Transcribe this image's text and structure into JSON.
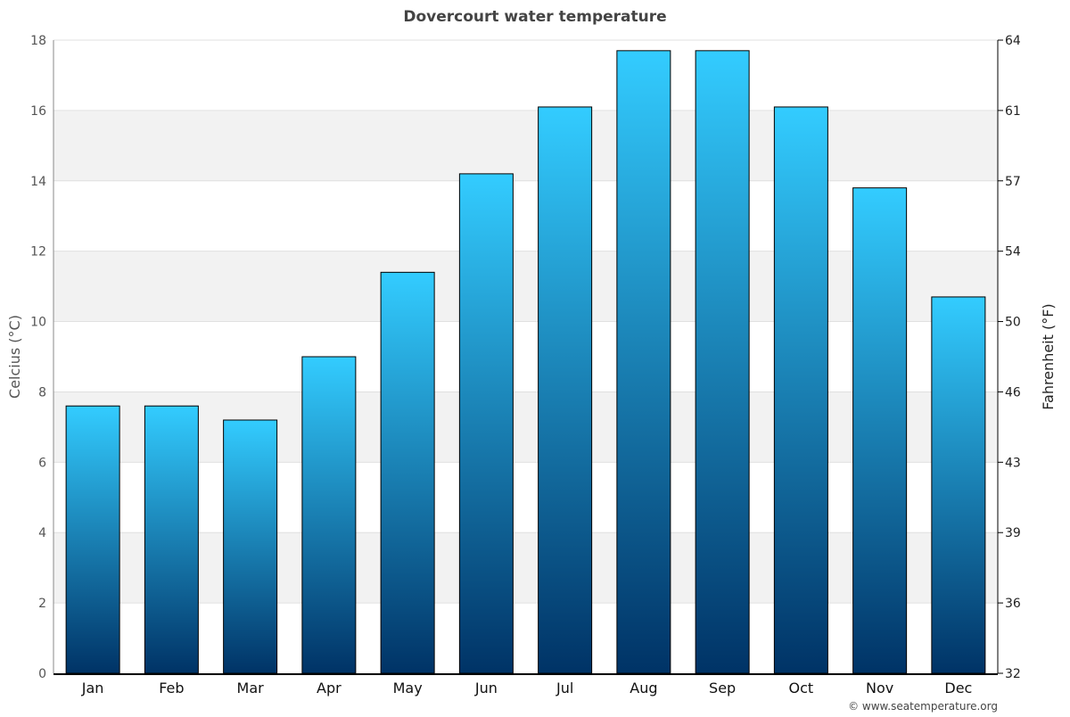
{
  "chart_data": {
    "type": "bar",
    "title": "Dovercourt water temperature",
    "categories": [
      "Jan",
      "Feb",
      "Mar",
      "Apr",
      "May",
      "Jun",
      "Jul",
      "Aug",
      "Sep",
      "Oct",
      "Nov",
      "Dec"
    ],
    "values": [
      7.6,
      7.6,
      7.2,
      9.0,
      11.4,
      14.2,
      16.1,
      17.7,
      17.7,
      16.1,
      13.8,
      10.7
    ],
    "ylabel": "Celcius (°C)",
    "y2label": "Fahrenheit (°F)",
    "ylim": [
      0,
      18
    ],
    "yticks": [
      "0",
      "2",
      "4",
      "6",
      "8",
      "10",
      "12",
      "14",
      "16",
      "18"
    ],
    "y2ticks": [
      "32",
      "36",
      "39",
      "43",
      "46",
      "50",
      "54",
      "57",
      "61",
      "64"
    ],
    "grid": true,
    "bar_color_top": "#33ccff",
    "bar_color_bottom": "#003366"
  },
  "credit": "© www.seatemperature.org"
}
